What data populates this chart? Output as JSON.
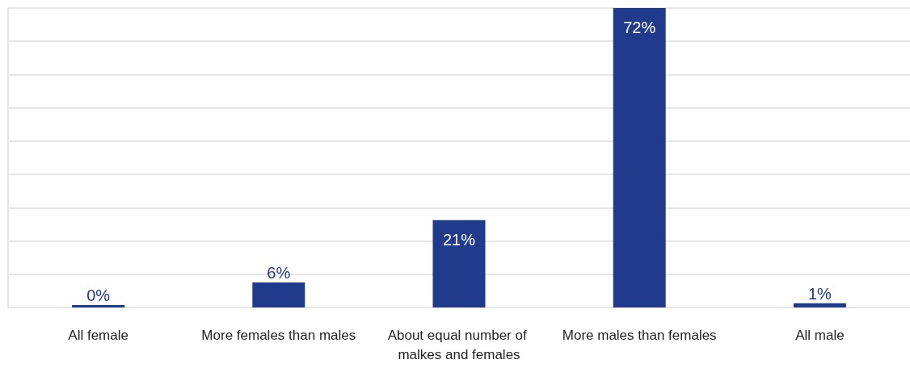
{
  "chart_data": {
    "type": "bar",
    "categories": [
      "All female",
      "More females than males",
      "About equal number of malkes and females",
      "More males than females",
      "All male"
    ],
    "values": [
      0,
      6,
      21,
      72,
      1
    ],
    "value_labels": [
      "0%",
      "6%",
      "21%",
      "72%",
      "1%"
    ],
    "color": "#213b8c",
    "ylim": [
      0,
      72
    ],
    "yticks": [
      {
        "value": 0,
        "label": null
      },
      {
        "value": 8,
        "label": null
      },
      {
        "value": 16,
        "label": null
      },
      {
        "value": 24,
        "label": null
      },
      {
        "value": 32,
        "label": null
      },
      {
        "value": 40,
        "label": null
      },
      {
        "value": 48,
        "label": null
      },
      {
        "value": 56,
        "label": null
      },
      {
        "value": 64,
        "label": null
      },
      {
        "value": 72,
        "label": null
      }
    ],
    "grid": "y",
    "tick_labels": "x"
  }
}
